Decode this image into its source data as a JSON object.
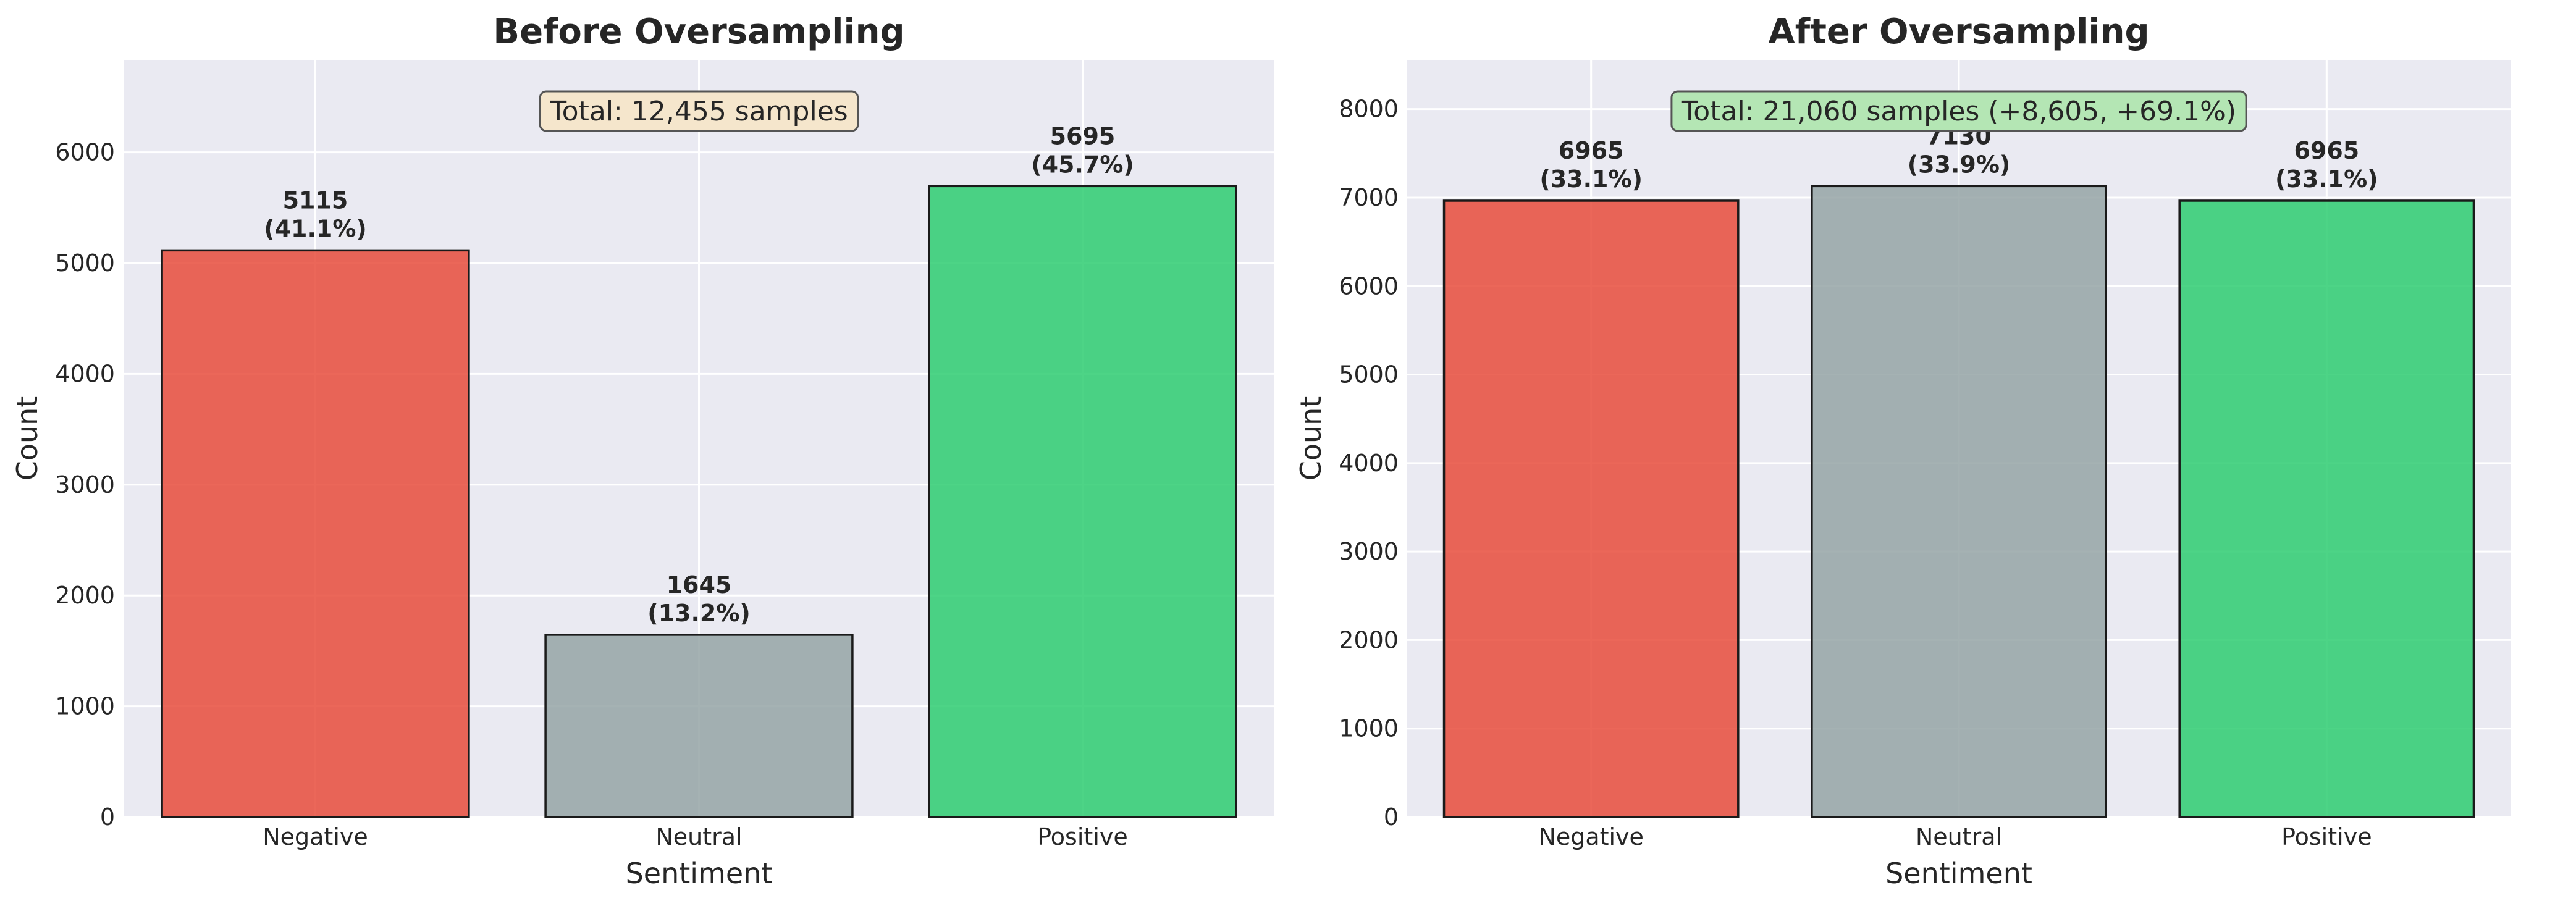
{
  "chart_data": [
    {
      "type": "bar",
      "title": "Before Oversampling",
      "xlabel": "Sentiment",
      "ylabel": "Count",
      "categories": [
        "Negative",
        "Neutral",
        "Positive"
      ],
      "values": [
        5115,
        1645,
        5695
      ],
      "value_labels": [
        "5115",
        "1645",
        "5695"
      ],
      "percent_labels": [
        "(41.1%)",
        "(13.2%)",
        "(45.7%)"
      ],
      "colors": [
        "#e74c3c",
        "#95a5a6",
        "#2ecc71"
      ],
      "ylim": [
        0,
        6834
      ],
      "yticks": [
        0,
        1000,
        2000,
        3000,
        4000,
        5000,
        6000
      ],
      "annotation": "Total: 12,455 samples",
      "annotation_color": "#f5e6cc",
      "annotation_position": "top-center",
      "grid": true
    },
    {
      "type": "bar",
      "title": "After Oversampling",
      "xlabel": "Sentiment",
      "ylabel": "Count",
      "categories": [
        "Negative",
        "Neutral",
        "Positive"
      ],
      "values": [
        6965,
        7130,
        6965
      ],
      "value_labels": [
        "6965",
        "7130",
        "6965"
      ],
      "percent_labels": [
        "(33.1%)",
        "(33.9%)",
        "(33.1%)"
      ],
      "colors": [
        "#e74c3c",
        "#95a5a6",
        "#2ecc71"
      ],
      "ylim": [
        0,
        8556
      ],
      "yticks": [
        0,
        1000,
        2000,
        3000,
        4000,
        5000,
        6000,
        7000,
        8000
      ],
      "annotation": "Total: 21,060 samples (+8,605, +69.1%)",
      "annotation_color": "#b4e6b4",
      "annotation_position": "top-center",
      "grid": true
    }
  ]
}
